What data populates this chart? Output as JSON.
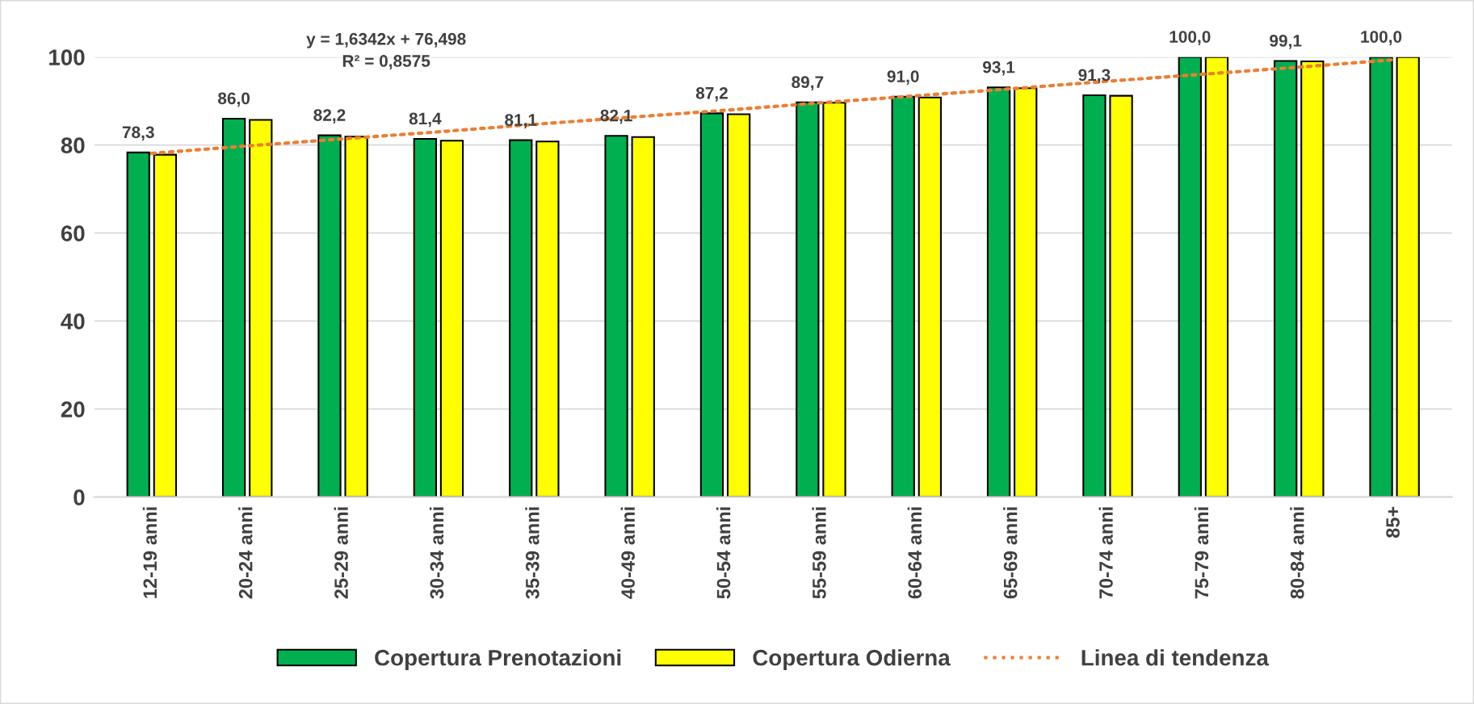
{
  "chart_data": {
    "type": "bar",
    "categories": [
      "12-19 anni",
      "20-24 anni",
      "25-29 anni",
      "30-34 anni",
      "35-39 anni",
      "40-49 anni",
      "50-54 anni",
      "55-59 anni",
      "60-64 anni",
      "65-69 anni",
      "70-74 anni",
      "75-79 anni",
      "80-84 anni",
      "85+"
    ],
    "series": [
      {
        "name": "Copertura Prenotazioni",
        "color": "#00b050",
        "values": [
          78.3,
          86.0,
          82.2,
          81.4,
          81.1,
          82.1,
          87.2,
          89.7,
          91.0,
          93.1,
          91.3,
          100.0,
          99.1,
          100.0
        ],
        "value_labels": [
          "78,3",
          "86,0",
          "82,2",
          "81,4",
          "81,1",
          "82,1",
          "87,2",
          "89,7",
          "91,0",
          "93,1",
          "91,3",
          "100,0",
          "99,1",
          "100,0"
        ]
      },
      {
        "name": "Copertura Odierna",
        "color": "#ffff00",
        "values": [
          77.8,
          85.7,
          81.9,
          81.0,
          80.8,
          81.8,
          87.0,
          89.6,
          90.8,
          92.9,
          91.2,
          100.0,
          99.0,
          100.0
        ]
      },
      {
        "name": "Linea di tendenza",
        "type": "line",
        "color": "#ed7d31",
        "line_style": "dotted",
        "marker": "none",
        "values": [
          78.1,
          79.8,
          81.4,
          83.0,
          84.7,
          86.3,
          87.9,
          89.6,
          91.2,
          92.8,
          94.5,
          96.1,
          97.7,
          99.4
        ]
      }
    ],
    "annotations": [
      "y = 1,6342x + 76,498",
      "R² = 0,8575"
    ],
    "ylim": [
      0,
      100
    ],
    "yticks": [
      0,
      20,
      40,
      60,
      80,
      100
    ],
    "grid": "y",
    "legend": "bottom"
  }
}
